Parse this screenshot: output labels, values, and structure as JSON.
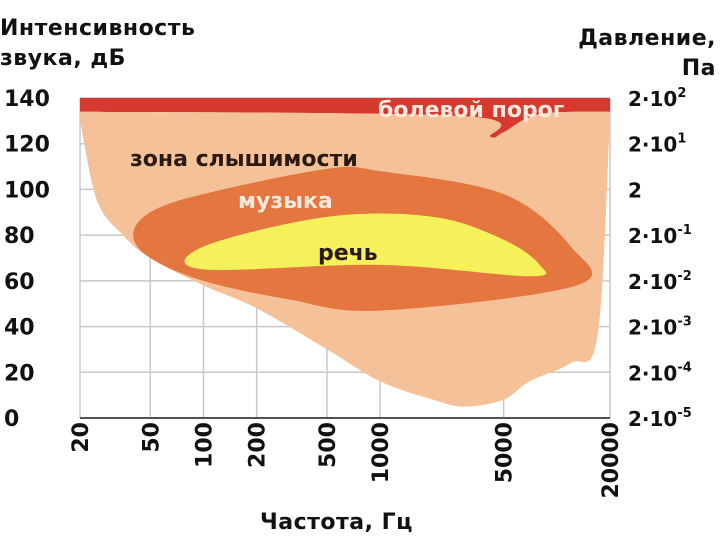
{
  "chart_data": {
    "type": "area",
    "ylabel_left": [
      "Интенсивность",
      "звука, дБ"
    ],
    "ylabel_right": [
      "Давление,",
      "Па"
    ],
    "xlabel": "Частота, Гц",
    "x_scale": "log",
    "x_ticks": [
      "20",
      "50",
      "100",
      "200",
      "500",
      "1000",
      "5000",
      "20000"
    ],
    "x_tick_values": [
      20,
      50,
      100,
      200,
      500,
      1000,
      5000,
      20000
    ],
    "y_ticks": [
      "140",
      "120",
      "100",
      "80",
      "60",
      "40",
      "20",
      "0"
    ],
    "y_tick_values": [
      140,
      120,
      100,
      80,
      60,
      40,
      20,
      0
    ],
    "ylim": [
      0,
      140
    ],
    "right_ticks": [
      {
        "base": "2·10",
        "exp": "2",
        "db": 140
      },
      {
        "base": "2·10",
        "exp": "1",
        "db": 120
      },
      {
        "base": "2",
        "exp": "",
        "db": 100
      },
      {
        "base": "2·10",
        "exp": "-1",
        "db": 80
      },
      {
        "base": "2·10",
        "exp": "-2",
        "db": 60
      },
      {
        "base": "2·10",
        "exp": "-3",
        "db": 40
      },
      {
        "base": "2·10",
        "exp": "-4",
        "db": 20
      },
      {
        "base": "2·10",
        "exp": "-5",
        "db": 0
      }
    ],
    "grid": true,
    "zones": [
      {
        "name": "болевой порог",
        "color": "#d63a2f",
        "upper": [
          [
            20,
            140
          ],
          [
            20000,
            140
          ]
        ],
        "lower": [
          [
            20,
            134
          ],
          [
            3000,
            132
          ],
          [
            4200,
            123
          ],
          [
            5000,
            125
          ],
          [
            8000,
            133
          ],
          [
            20000,
            134
          ]
        ]
      },
      {
        "name": "зона слышимости",
        "color": "#f5c199",
        "upper": [
          [
            20,
            134
          ],
          [
            3000,
            132
          ],
          [
            4200,
            123
          ],
          [
            5000,
            125
          ],
          [
            8000,
            133
          ],
          [
            20000,
            134
          ]
        ],
        "lower": [
          [
            20,
            130
          ],
          [
            25,
            95
          ],
          [
            35,
            80
          ],
          [
            50,
            70
          ],
          [
            100,
            58
          ],
          [
            200,
            48
          ],
          [
            500,
            30
          ],
          [
            1000,
            16
          ],
          [
            2000,
            8
          ],
          [
            3000,
            5
          ],
          [
            5000,
            8
          ],
          [
            7000,
            16
          ],
          [
            12000,
            24
          ],
          [
            17000,
            36
          ],
          [
            20000,
            132
          ]
        ]
      },
      {
        "name": "музыка",
        "color": "#e4763f",
        "outline": [
          [
            50,
            90
          ],
          [
            100,
            98
          ],
          [
            500,
            109
          ],
          [
            1000,
            108
          ],
          [
            5000,
            98
          ],
          [
            12000,
            75
          ],
          [
            13000,
            58
          ],
          [
            1000,
            47
          ],
          [
            300,
            52
          ],
          [
            100,
            60
          ],
          [
            50,
            70
          ],
          [
            40,
            80
          ]
        ]
      },
      {
        "name": "речь",
        "color": "#f6f05a",
        "outline": [
          [
            100,
            75
          ],
          [
            500,
            88
          ],
          [
            2000,
            88
          ],
          [
            5000,
            78
          ],
          [
            8000,
            67
          ],
          [
            7000,
            62
          ],
          [
            1000,
            67
          ],
          [
            100,
            65
          ]
        ]
      }
    ]
  },
  "colors": {
    "grid": "#c8c8c8",
    "axis": "#222222",
    "label_light": "#fde9dc",
    "label_dark": "#2a1a10"
  }
}
